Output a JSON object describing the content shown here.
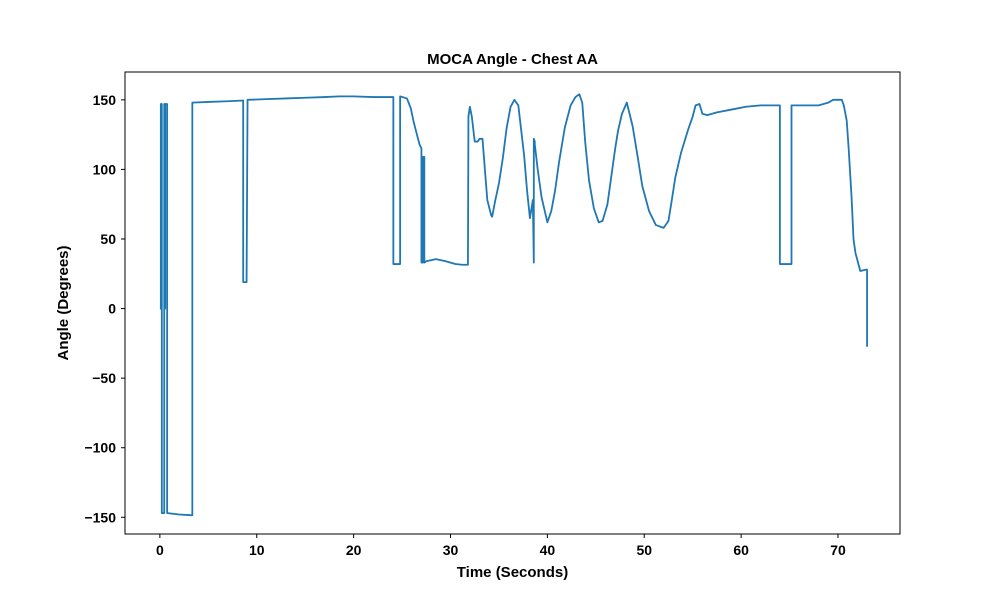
{
  "chart_data": {
    "type": "line",
    "title": "MOCA Angle - Chest AA",
    "xlabel": "Time (Seconds)",
    "ylabel": "Angle (Degrees)",
    "xlim": [
      -3.6,
      76.4
    ],
    "ylim": [
      -162,
      170
    ],
    "xticks": [
      0,
      10,
      20,
      30,
      40,
      50,
      60,
      70
    ],
    "yticks": [
      -150,
      -100,
      -50,
      0,
      50,
      100,
      150
    ],
    "xtick_labels": [
      "0",
      "10",
      "20",
      "30",
      "40",
      "50",
      "60",
      "70"
    ],
    "ytick_labels": [
      "−150",
      "−100",
      "−50",
      "0",
      "50",
      "100",
      "150"
    ],
    "grid": false,
    "series": [
      {
        "color": "#1f77b4",
        "x": [
          0,
          0.1,
          0.1,
          0.2,
          0.2,
          0.45,
          0.45,
          0.5,
          0.5,
          0.55,
          0.55,
          0.75,
          0.75,
          0.8,
          2.0,
          3.2,
          3.3,
          3.35,
          3.35,
          5.0,
          7.0,
          8.6,
          8.6,
          8.95,
          8.95,
          9.05,
          9.05,
          11,
          13,
          15,
          17,
          18.5,
          20,
          22,
          24.1,
          24.1,
          24.8,
          24.8,
          25.5,
          25.9,
          26.2,
          26.8,
          27.0,
          27.0,
          27.15,
          27.15,
          27.3,
          27.3,
          27.5,
          28.5,
          29.5,
          30.5,
          31.2,
          31.8,
          31.85,
          31.85,
          32.0,
          32.2,
          32.5,
          32.8,
          33.0,
          33.3,
          33.8,
          34.2,
          34.3,
          34.6,
          35.0,
          35.4,
          35.8,
          36.2,
          36.6,
          37.0,
          37.3,
          37.6,
          37.9,
          38.2,
          38.5,
          38.6,
          38.6,
          38.7,
          38.7,
          39.0,
          39.4,
          40.0,
          40.4,
          40.8,
          41.2,
          41.8,
          42.4,
          42.9,
          43.3,
          43.6,
          43.9,
          44.3,
          44.8,
          45.3,
          45.7,
          46.2,
          46.6,
          47.0,
          47.3,
          47.7,
          48.2,
          48.8,
          49.3,
          49.8,
          50.5,
          51.2,
          52.0,
          52.5,
          52.8,
          53.2,
          53.8,
          54.5,
          55.0,
          55.3,
          55.7,
          56.0,
          56.5,
          57.5,
          59.0,
          60.5,
          62.0,
          63.5,
          64.0,
          64.0,
          65.2,
          65.2,
          66.5,
          68.0,
          69.0,
          69.5,
          70.0,
          70.4,
          70.6,
          70.9,
          71.1,
          71.4,
          71.6,
          71.8,
          72.3,
          72.9,
          72.9,
          73.0,
          73.0,
          73.0
        ],
        "y": [
          0,
          0,
          147,
          147,
          -147,
          -147,
          147,
          147,
          0,
          0,
          147,
          147,
          -147,
          -147,
          -148,
          -148.5,
          -148.5,
          -148.5,
          148,
          148.5,
          149,
          149.5,
          19,
          19,
          19,
          149.5,
          150,
          150.5,
          151,
          151.5,
          152,
          152.5,
          152.5,
          152,
          152,
          32,
          32,
          152.5,
          151,
          144,
          134,
          118,
          115,
          33,
          33,
          109,
          109,
          33,
          34,
          35.5,
          34,
          32,
          31.5,
          31.5,
          135,
          138,
          145,
          138,
          120,
          120,
          122,
          122,
          78,
          67,
          66,
          77,
          90,
          108,
          130,
          145,
          150,
          146,
          128,
          110,
          85,
          65,
          78,
          33,
          122,
          120,
          118,
          100,
          80,
          62,
          70,
          85,
          105,
          130,
          146,
          152,
          154,
          148,
          120,
          92,
          72,
          62,
          63,
          75,
          95,
          115,
          128,
          140,
          148,
          131,
          110,
          88,
          70,
          60,
          58,
          63,
          76,
          94,
          112,
          128,
          138,
          146,
          147,
          140,
          139,
          141,
          143,
          145,
          146,
          146,
          146,
          32,
          32,
          146,
          146,
          146,
          148,
          150,
          150,
          150,
          146,
          135,
          115,
          80,
          50,
          40,
          27,
          28,
          28,
          28,
          -27,
          28
        ]
      }
    ]
  }
}
